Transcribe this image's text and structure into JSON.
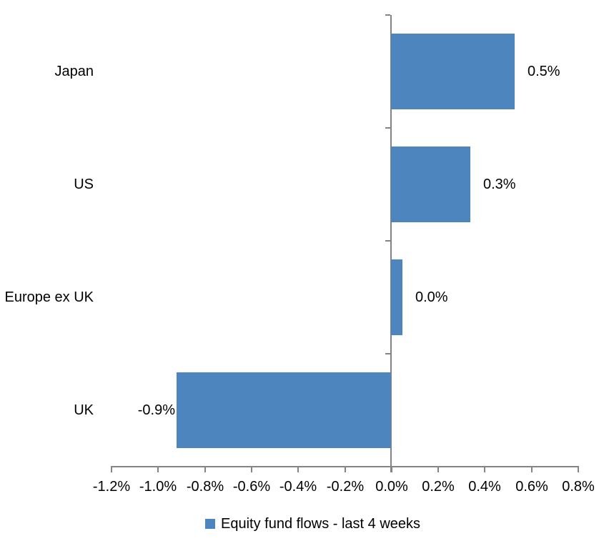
{
  "chart_data": {
    "type": "bar",
    "orientation": "horizontal",
    "title": "",
    "categories": [
      "Japan",
      "US",
      "Europe ex UK",
      "UK"
    ],
    "values": [
      0.53,
      0.34,
      0.05,
      -0.92
    ],
    "value_labels": [
      "0.5%",
      "0.3%",
      "0.0%",
      "-0.9%"
    ],
    "series": [
      {
        "name": "Equity fund flows - last 4 weeks",
        "values": [
          0.53,
          0.34,
          0.05,
          -0.92
        ]
      }
    ],
    "x_axis": {
      "min": -1.2,
      "max": 0.8,
      "tick_step": 0.2,
      "tick_values": [
        -1.2,
        -1.0,
        -0.8,
        -0.6,
        -0.4,
        -0.2,
        0.0,
        0.2,
        0.4,
        0.6,
        0.8
      ],
      "tick_labels": [
        "-1.2%",
        "-1.0%",
        "-0.8%",
        "-0.6%",
        "-0.4%",
        "-0.2%",
        "0.0%",
        "0.2%",
        "0.4%",
        "0.6%",
        "0.8%"
      ]
    },
    "legend": {
      "position": "bottom",
      "label": "Equity fund flows - last 4 weeks"
    },
    "colors": {
      "bar": "#4D86BE",
      "axis": "#848484",
      "text": "#000000",
      "background": "#FFFFFF"
    },
    "grid": false
  }
}
